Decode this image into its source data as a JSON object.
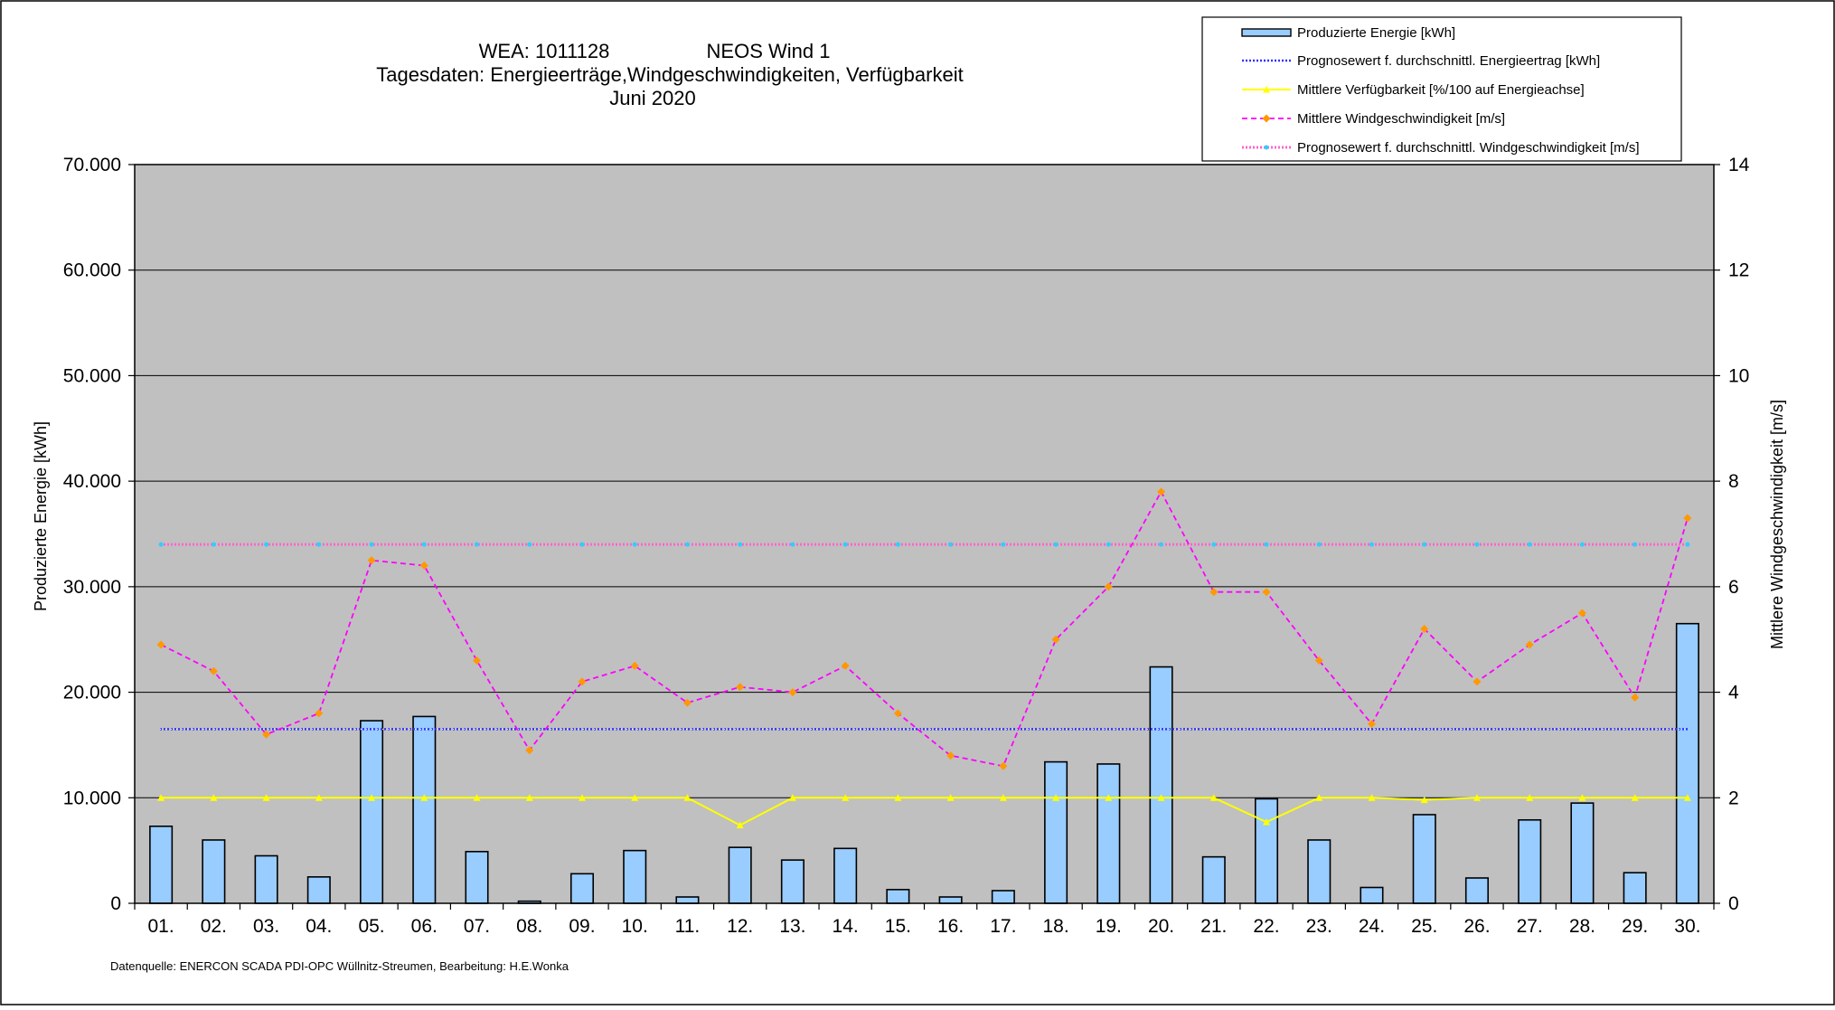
{
  "header": {
    "title_line1_left": "WEA: 1011128",
    "title_line1_right": "NEOS Wind 1",
    "title_line2": "Tagesdaten:  Energieerträge,Windgeschwindigkeiten,  Verfügbarkeit",
    "title_line3": "Juni 2020"
  },
  "footer": {
    "source": "Datenquelle: ENERCON SCADA PDI-OPC Wüllnitz-Streumen,   Bearbeitung: H.E.Wonka"
  },
  "chart_data": {
    "type": "bar",
    "title": "WEA: 1011128 NEOS Wind 1 — Tagesdaten: Energieerträge,Windgeschwindigkeiten, Verfügbarkeit — Juni 2020",
    "xlabel": "",
    "ylabel": "Produzierte Energie [kWh]",
    "y2label": "Mittlere Windgeschwindigkeit [m/s]",
    "categories": [
      "01.",
      "02.",
      "03.",
      "04.",
      "05.",
      "06.",
      "07.",
      "08.",
      "09.",
      "10.",
      "11.",
      "12.",
      "13.",
      "14.",
      "15.",
      "16.",
      "17.",
      "18.",
      "19.",
      "20.",
      "21.",
      "22.",
      "23.",
      "24.",
      "25.",
      "26.",
      "27.",
      "28.",
      "29.",
      "30."
    ],
    "ylim": [
      0,
      70000
    ],
    "y2lim": [
      0,
      14
    ],
    "yticks": [
      0,
      10000,
      20000,
      30000,
      40000,
      50000,
      60000,
      70000
    ],
    "ytick_labels": [
      "0",
      "10.000",
      "20.000",
      "30.000",
      "40.000",
      "50.000",
      "60.000",
      "70.000"
    ],
    "y2ticks": [
      0,
      2,
      4,
      6,
      8,
      10,
      12,
      14
    ],
    "y2tick_labels": [
      "0",
      "2",
      "4",
      "6",
      "8",
      "10",
      "12",
      "14"
    ],
    "grid": true,
    "legend_position": "top-right",
    "plot_background": "#c0c0c0",
    "series": [
      {
        "name": "Produzierte Energie [kWh]",
        "kind": "bar",
        "axis": "left",
        "color": "#99ccff",
        "values": [
          7300,
          6000,
          4500,
          2500,
          17300,
          17700,
          4900,
          200,
          2800,
          5000,
          600,
          5300,
          4100,
          5200,
          1300,
          600,
          1200,
          13400,
          13200,
          22400,
          4400,
          9900,
          6000,
          1500,
          8400,
          2400,
          7900,
          9500,
          2900,
          26500
        ]
      },
      {
        "name": "Prognosewert f. durchschnittl. Energieertrag  [kWh]",
        "kind": "line-dotted",
        "axis": "left",
        "color": "#3333ff",
        "values": [
          16500,
          16500,
          16500,
          16500,
          16500,
          16500,
          16500,
          16500,
          16500,
          16500,
          16500,
          16500,
          16500,
          16500,
          16500,
          16500,
          16500,
          16500,
          16500,
          16500,
          16500,
          16500,
          16500,
          16500,
          16500,
          16500,
          16500,
          16500,
          16500,
          16500
        ]
      },
      {
        "name": "Mittlere Verfügbarkeit [%/100 auf Energieachse]",
        "kind": "line-triangle",
        "axis": "left",
        "color": "#ffff00",
        "values": [
          10000,
          10000,
          10000,
          10000,
          10000,
          10000,
          10000,
          10000,
          10000,
          10000,
          10000,
          7400,
          10000,
          10000,
          10000,
          10000,
          10000,
          10000,
          10000,
          10000,
          10000,
          7700,
          10000,
          10000,
          9800,
          10000,
          10000,
          10000,
          10000,
          10000
        ]
      },
      {
        "name": "Mittlere Windgeschwindigkeit [m/s]",
        "kind": "line-dashed-diamond",
        "axis": "right",
        "color": "#ff00ff",
        "marker_color": "#ff9900",
        "values": [
          4.9,
          4.4,
          3.2,
          3.6,
          6.5,
          6.4,
          4.6,
          2.9,
          4.2,
          4.5,
          3.8,
          4.1,
          4.0,
          4.5,
          3.6,
          2.8,
          2.6,
          5.0,
          6.0,
          7.8,
          5.9,
          5.9,
          4.6,
          3.4,
          5.2,
          4.2,
          4.9,
          5.5,
          3.9,
          7.3
        ]
      },
      {
        "name": "Prognosewert f. durchschnittl. Windgeschwindigkeit [m/s]",
        "kind": "line-dotted-pink",
        "axis": "right",
        "color": "#ff66cc",
        "marker_color": "#33ccff",
        "values": [
          6.8,
          6.8,
          6.8,
          6.8,
          6.8,
          6.8,
          6.8,
          6.8,
          6.8,
          6.8,
          6.8,
          6.8,
          6.8,
          6.8,
          6.8,
          6.8,
          6.8,
          6.8,
          6.8,
          6.8,
          6.8,
          6.8,
          6.8,
          6.8,
          6.8,
          6.8,
          6.8,
          6.8,
          6.8,
          6.8
        ]
      }
    ]
  }
}
